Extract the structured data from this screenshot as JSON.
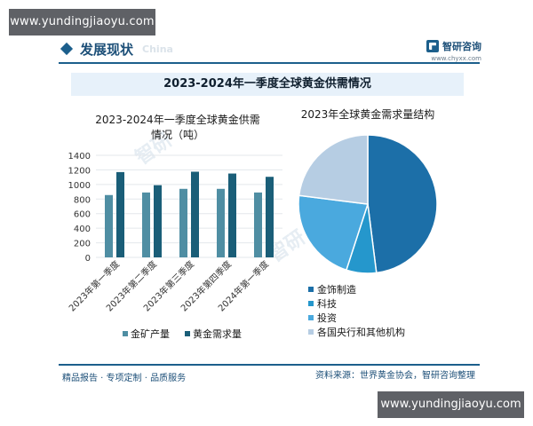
{
  "watermark": {
    "top_left": "www.yundingjiaoyu.com",
    "bottom_right": "www.yundingjiaoyu.com"
  },
  "header": {
    "section_title": "发展现状",
    "section_faint": "China",
    "brand_name": "智研咨询",
    "brand_site": "www.chyxx.com"
  },
  "banner_title": "2023-2024年一季度全球黄金供需情况",
  "footer": {
    "left": "精品报告 · 专项定制 · 品质服务",
    "right": "资料来源：世界黄金协会，智研咨询整理"
  },
  "colors": {
    "supply": "#4f8ea3",
    "demand": "#1a5e78",
    "pie": [
      "#1c6fa8",
      "#2597cc",
      "#4aa9de",
      "#b6cde3"
    ]
  },
  "chart_data": [
    {
      "type": "bar",
      "title": [
        "2023-2024年一季度全球黄金供需",
        "情况（吨）"
      ],
      "categories": [
        "2023年第一季度",
        "2023年第二季度",
        "2023年第三季度",
        "2023年第四季度",
        "2024年第一季度"
      ],
      "series": [
        {
          "name": "金矿产量",
          "values": [
            855,
            890,
            940,
            940,
            890
          ]
        },
        {
          "name": "黄金需求量",
          "values": [
            1170,
            990,
            1175,
            1150,
            1105
          ]
        }
      ],
      "ylim": [
        0,
        1400
      ],
      "yticks": [
        0,
        200,
        400,
        600,
        800,
        1000,
        1200,
        1400
      ],
      "legend": "bottom"
    },
    {
      "type": "pie",
      "title": "2023年全球黄金需求量结构",
      "labels": [
        "金饰制造",
        "科技",
        "投资",
        "各国央行和其他机构"
      ],
      "values": [
        48,
        7,
        22,
        23
      ],
      "legend": "bottom"
    }
  ]
}
